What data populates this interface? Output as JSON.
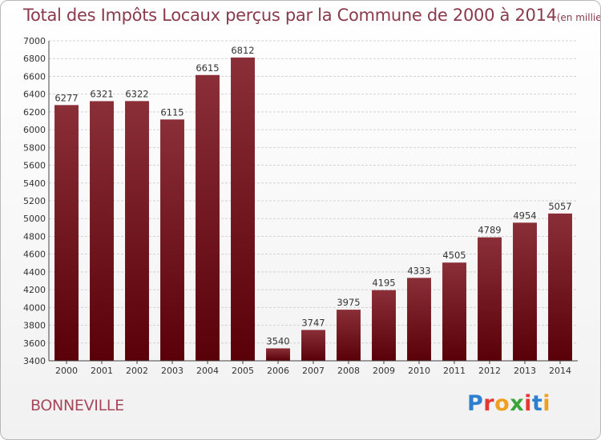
{
  "title": {
    "main": "Total des Impôts Locaux perçus par la Commune de 2000 à 2014",
    "unit": "(en milliers d'€)"
  },
  "commune": "BONNEVILLE",
  "logo": {
    "letters": [
      "P",
      "r",
      "o",
      "x",
      "i",
      "t",
      "i"
    ]
  },
  "colors": {
    "bar_dark": "#5a0008",
    "bar_light": "#8a2f38",
    "title": "#8a3a4c",
    "commune": "#a8475a"
  },
  "chart_data": {
    "type": "bar",
    "title": "Total des Impôts Locaux perçus par la Commune de 2000 à 2014 (en milliers d'€)",
    "xlabel": "",
    "ylabel": "",
    "categories": [
      "2000",
      "2001",
      "2002",
      "2003",
      "2004",
      "2005",
      "2006",
      "2007",
      "2008",
      "2009",
      "2010",
      "2011",
      "2012",
      "2013",
      "2014"
    ],
    "values": [
      6277,
      6321,
      6322,
      6115,
      6615,
      6812,
      3540,
      3747,
      3975,
      4195,
      4333,
      4505,
      4789,
      4954,
      5057
    ],
    "ylim": [
      3400,
      7000
    ],
    "yticks": [
      3400,
      3600,
      3800,
      4000,
      4200,
      4400,
      4600,
      4800,
      5000,
      5200,
      5400,
      5600,
      5800,
      6000,
      6200,
      6400,
      6600,
      6800,
      7000
    ],
    "grid": true,
    "legend": "none"
  }
}
